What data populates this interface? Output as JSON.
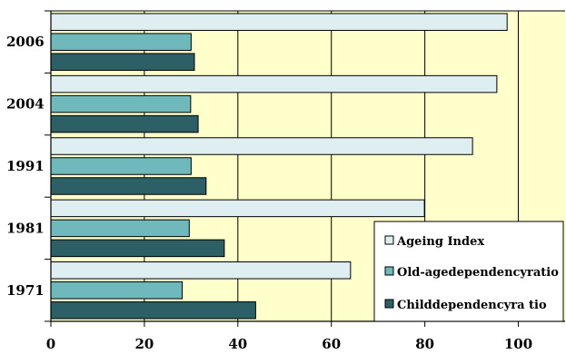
{
  "chart_data": {
    "type": "bar",
    "orientation": "horizontal",
    "categories": [
      "2006",
      "2004",
      "1991",
      "1981",
      "1971"
    ],
    "series": [
      {
        "name": "Ageing Index",
        "color": "#dfeef0",
        "values": [
          97.6,
          95.4,
          90.2,
          79.9,
          64.1
        ]
      },
      {
        "name": "Old-agedependencyratio",
        "color": "#6fb8bc",
        "values": [
          30.0,
          29.9,
          30.0,
          29.6,
          28.1
        ]
      },
      {
        "name": "Childdependencyra  tio",
        "color": "#2d6066",
        "values": [
          30.7,
          31.5,
          33.2,
          37.1,
          43.8
        ]
      }
    ],
    "xlim": [
      0,
      110
    ],
    "x_ticks": [
      "0",
      "20",
      "40",
      "60",
      "80",
      "100"
    ],
    "x_tick_values": [
      0,
      20,
      40,
      60,
      80,
      100
    ],
    "grid": true,
    "legend_position": "bottom-right",
    "plot_background": "#ffffcc",
    "title": "",
    "xlabel": "",
    "ylabel": ""
  }
}
